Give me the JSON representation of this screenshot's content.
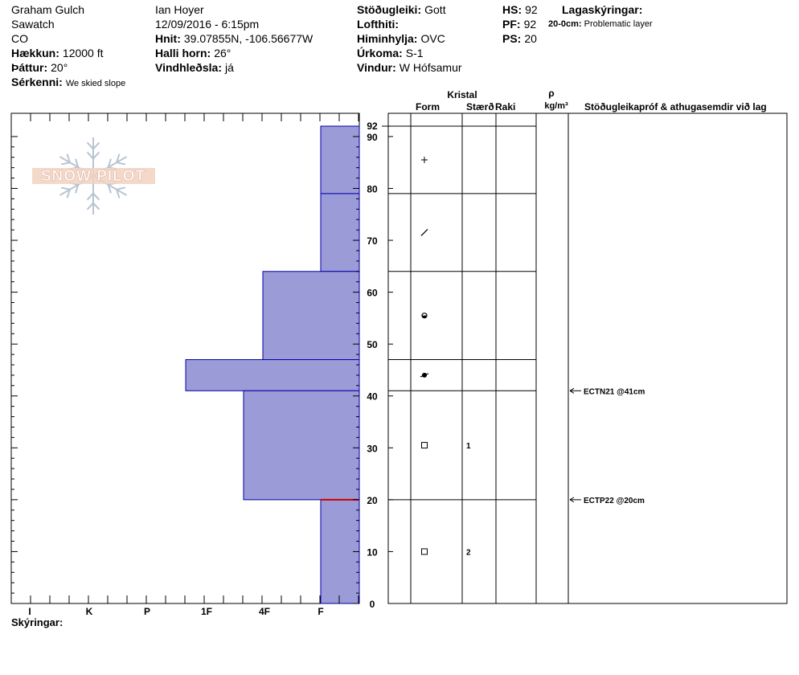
{
  "header": {
    "col1": [
      {
        "label": "",
        "value": "Graham Gulch"
      },
      {
        "label": "",
        "value": "Sawatch"
      },
      {
        "label": "",
        "value": "CO"
      },
      {
        "label": "Hækkun:",
        "value": "12000 ft"
      },
      {
        "label": "Þáttur:",
        "value": "20°"
      },
      {
        "label": "Sérkenni:",
        "value": "We skied slope"
      }
    ],
    "col2": [
      {
        "label": "",
        "value": "Ian Hoyer"
      },
      {
        "label": "",
        "value": "12/09/2016 - 6:15pm"
      },
      {
        "label": "Hnit:",
        "value": "39.07855N, -106.56677W"
      },
      {
        "label": "Halli horn:",
        "value": "26°"
      },
      {
        "label": "Vindhleðsla:",
        "value": "já"
      }
    ],
    "col3": [
      {
        "label": "Stöðugleiki:",
        "value": "Gott"
      },
      {
        "label": "Lofthiti:",
        "value": ""
      },
      {
        "label": "Himinhylja:",
        "value": "OVC"
      },
      {
        "label": "Úrkoma:",
        "value": "S-1"
      },
      {
        "label": "Vindur:",
        "value": "W Hófsamur"
      }
    ],
    "col4": [
      {
        "label": "HS:",
        "value": "92"
      },
      {
        "label": "PF:",
        "value": "92"
      },
      {
        "label": "PS:",
        "value": "20"
      }
    ],
    "legend_title": "Lagaskýringar:",
    "legend_item": {
      "depth": "20-0cm:",
      "text": "Problematic layer"
    }
  },
  "logo_text": "SNOW PILOT",
  "footer_label": "Skýringar:",
  "columns": {
    "kristal": "Kristal",
    "form": "Form",
    "size": "Stærð",
    "raki": "Raki",
    "rho": "ρ",
    "density_unit": "kg/m³",
    "comments": "Stöðugleikapróf & athugasemdir við lag"
  },
  "colors": {
    "hardness_fill": "#9b9bd7",
    "hardness_stroke": "#0000aa",
    "problem_layer": "#cc0000"
  },
  "chart_data": {
    "type": "snow_profile",
    "depth_axis": {
      "min": 0,
      "max": 92,
      "ticks": [
        0,
        10,
        20,
        30,
        40,
        50,
        60,
        70,
        80,
        90
      ],
      "top_label": "92"
    },
    "hardness_axis": {
      "labels": [
        "I",
        "K",
        "P",
        "1F",
        "4F",
        "F"
      ]
    },
    "layers": [
      {
        "top": 92,
        "bottom": 79,
        "hardness": "F",
        "form": "plus-icon",
        "size": ""
      },
      {
        "top": 79,
        "bottom": 64,
        "hardness": "F",
        "form": "slash-icon",
        "size": ""
      },
      {
        "top": 64,
        "bottom": 47,
        "hardness": "4F-",
        "form": "rounded-facet-icon",
        "size": ""
      },
      {
        "top": 47,
        "bottom": 41,
        "hardness": "1F",
        "form": "filled-circle-slash-icon",
        "size": ""
      },
      {
        "top": 41,
        "bottom": 20,
        "hardness": "4F",
        "form": "square-icon",
        "size": "1"
      },
      {
        "top": 20,
        "bottom": 0,
        "hardness": "F",
        "form": "square-icon",
        "size": "2"
      }
    ],
    "problem_layer_depth": 20,
    "stability_tests": [
      {
        "depth": 41,
        "label": "ECTN21 @41cm"
      },
      {
        "depth": 20,
        "label": "ECTP22 @20cm"
      }
    ]
  }
}
